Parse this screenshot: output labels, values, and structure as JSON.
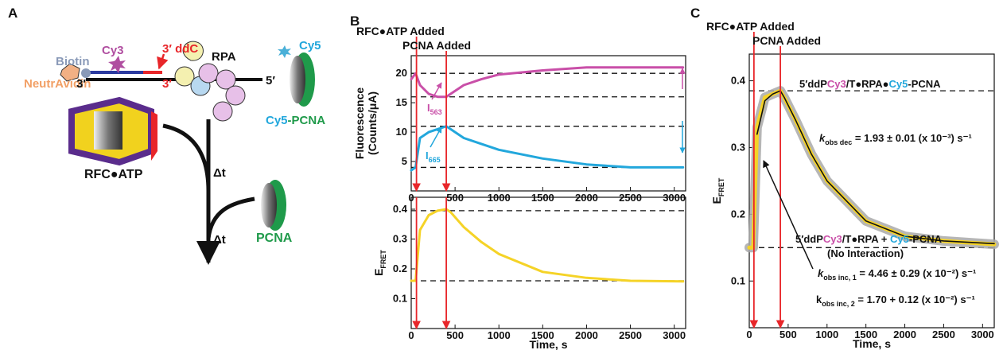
{
  "diagram": {
    "panel_label": "A",
    "biotin": "Biotin",
    "cy3": "Cy3",
    "ddc": "3′ ddC",
    "rpa": "RPA",
    "cy5": "Cy5",
    "neutravidin": "NeutrAvidin",
    "end_3_left": "3′",
    "end_3_red": "3′",
    "end_5": "5′",
    "pcna_cy5": "Cy5",
    "pcna_suffix": "-PCNA",
    "rfc": "RFC●ATP",
    "dt_1": "Δt",
    "dt_2": "Δt",
    "pcna": "PCNA"
  },
  "chart_data": [
    {
      "type": "line",
      "panel_label": "B",
      "ylabel_lines": [
        "Fluorescence",
        "(Counts/μA)"
      ],
      "x": [
        0,
        50,
        100,
        200,
        300,
        400,
        450,
        600,
        800,
        1000,
        1500,
        2000,
        2500,
        3100
      ],
      "series": [
        {
          "color": "#c94fa8",
          "values": [
            19,
            20,
            18,
            16.5,
            16,
            16,
            16.5,
            18,
            19,
            19.8,
            20.5,
            21,
            21,
            21
          ]
        },
        {
          "color": "#22a7dc",
          "values": [
            3.5,
            4,
            9,
            10,
            10.5,
            11,
            10.5,
            9,
            8,
            7,
            5.5,
            4.5,
            4,
            4
          ]
        }
      ],
      "xlim": [
        0,
        3130
      ],
      "ylim": [
        0,
        23
      ],
      "xticks": [
        0,
        500,
        1000,
        1500,
        2000,
        2500,
        3000
      ],
      "yticks": [
        5,
        10,
        15,
        20
      ],
      "hlines": [
        20,
        16,
        11,
        4
      ],
      "event_lines": [
        {
          "value": 60,
          "label": "RFC●ATP Added"
        },
        {
          "value": 400,
          "label": "PCNA Added"
        }
      ],
      "annotations": [
        {
          "parts": [
            {
              "text": "I",
              "color": "#c94fa8"
            },
            {
              "text": "563",
              "color": "#c94fa8",
              "sub": true
            }
          ]
        },
        {
          "parts": [
            {
              "text": "I",
              "color": "#22a7dc"
            },
            {
              "text": "665",
              "color": "#22a7dc",
              "sub": true
            }
          ]
        }
      ]
    },
    {
      "type": "line",
      "ylabel": {
        "text": "E",
        "sub": "FRET"
      },
      "xlabel": "Time, s",
      "x": [
        0,
        50,
        100,
        200,
        300,
        400,
        450,
        600,
        800,
        1000,
        1500,
        2000,
        2500,
        3100
      ],
      "series": [
        {
          "color": "#f5d327",
          "values": [
            0.16,
            0.16,
            0.33,
            0.38,
            0.395,
            0.4,
            0.39,
            0.34,
            0.29,
            0.25,
            0.19,
            0.17,
            0.16,
            0.158
          ]
        }
      ],
      "xlim": [
        0,
        3130
      ],
      "ylim": [
        0,
        0.44
      ],
      "xticks": [
        0,
        500,
        1000,
        1500,
        2000,
        2500,
        3000
      ],
      "yticks": [
        0.1,
        0.2,
        0.3,
        0.4
      ],
      "hlines": [
        0.395,
        0.16
      ],
      "event_lines": [
        {
          "value": 60
        },
        {
          "value": 400
        }
      ]
    },
    {
      "type": "line",
      "panel_label": "C",
      "ylabel": {
        "text": "E",
        "sub": "FRET"
      },
      "xlabel": "Time, s",
      "x": [
        0,
        50,
        100,
        200,
        300,
        400,
        450,
        600,
        800,
        1000,
        1500,
        2000,
        2500,
        3150
      ],
      "series": [
        {
          "color": "#a9a9a9",
          "values": [
            0.15,
            0.15,
            0.33,
            0.375,
            0.38,
            0.385,
            0.375,
            0.34,
            0.29,
            0.25,
            0.19,
            0.167,
            0.16,
            0.155
          ]
        },
        {
          "color": "#f5d327",
          "values": [
            0.15,
            0.15,
            0.33,
            0.375,
            0.38,
            0.385,
            0.375,
            0.34,
            0.29,
            0.25,
            0.19,
            0.167,
            0.16,
            0.155
          ]
        },
        {
          "color": "#111111",
          "values": [
            null,
            null,
            0.32,
            0.37,
            0.38,
            0.385,
            0.375,
            0.34,
            0.29,
            0.25,
            0.19,
            0.167,
            0.16,
            0.156
          ]
        }
      ],
      "xlim": [
        0,
        3150
      ],
      "ylim": [
        0.03,
        0.44
      ],
      "xticks": [
        0,
        500,
        1000,
        1500,
        2000,
        2500,
        3000
      ],
      "yticks": [
        0.1,
        0.2,
        0.3,
        0.4
      ],
      "hlines": [
        0.385,
        0.15
      ],
      "event_lines": [
        {
          "value": 60,
          "label": "RFC●ATP Added"
        },
        {
          "value": 400,
          "label": "PCNA Added"
        }
      ],
      "annotations": [
        {
          "parts": [
            {
              "text": "5′ddP",
              "color": "#111111"
            },
            {
              "text": "Cy3",
              "color": "#c94fa8"
            },
            {
              "text": "/T●RPA●",
              "color": "#111111"
            },
            {
              "text": "Cy5",
              "color": "#22a7dc"
            },
            {
              "text": "-PCNA",
              "color": "#111111"
            }
          ]
        },
        {
          "parts": [
            {
              "text": "k",
              "color": "#111111",
              "italic": true
            },
            {
              "text": "obs dec",
              "color": "#111111",
              "sub": true
            },
            {
              "text": " = 1.93 ± 0.01 (x 10⁻³) s⁻¹",
              "color": "#111111"
            }
          ]
        },
        {
          "parts": [
            {
              "text": "5′ddP",
              "color": "#111111"
            },
            {
              "text": "Cy3",
              "color": "#c94fa8"
            },
            {
              "text": "/T●RPA + ",
              "color": "#111111"
            },
            {
              "text": "Cy5",
              "color": "#22a7dc"
            },
            {
              "text": "-PCNA",
              "color": "#111111"
            }
          ]
        },
        {
          "parts": [
            {
              "text": "(No Interaction)",
              "color": "#111111"
            }
          ]
        },
        {
          "parts": [
            {
              "text": "k",
              "color": "#111111",
              "italic": true
            },
            {
              "text": "obs inc, 1",
              "color": "#111111",
              "sub": true
            },
            {
              "text": " = 4.46 ± 0.29 (x 10⁻²) s⁻¹",
              "color": "#111111"
            }
          ]
        },
        {
          "parts": [
            {
              "text": "k",
              "color": "#111111"
            },
            {
              "text": "obs inc, 2",
              "color": "#111111",
              "sub": true
            },
            {
              "text": " = 1.70 + 0.12 (x 10⁻²) s⁻¹",
              "color": "#111111"
            }
          ]
        }
      ]
    }
  ]
}
